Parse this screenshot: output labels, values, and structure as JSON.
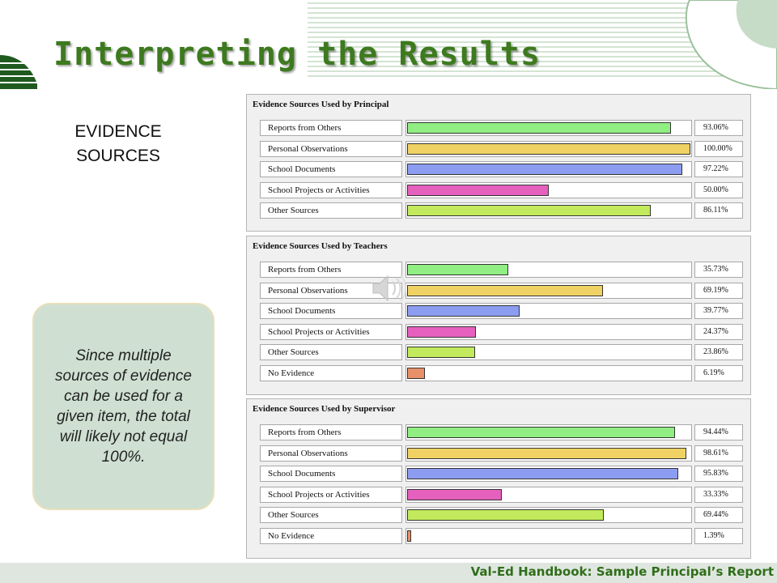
{
  "slide": {
    "title": "Interpreting the Results",
    "section_label": "EVIDENCE SOURCES",
    "callout": "Since multiple sources of evidence can be used for a given item, the total will likely not equal 100%.",
    "footer": "Val-Ed Handbook: Sample Principal’s Report"
  },
  "colors": {
    "Reports from Others": "#90ee82",
    "Personal Observations": "#f0d264",
    "School Documents": "#8c9cf0",
    "School Projects or Activities": "#e660be",
    "Other Sources": "#c2ea5c",
    "No Evidence": "#e8906a",
    "accent_green": "#3d7a1e"
  },
  "icons": {
    "audio": "speaker-icon"
  },
  "chart_data": [
    {
      "type": "bar",
      "orientation": "horizontal",
      "title": "Evidence Sources Used by Principal",
      "categories": [
        "Reports from Others",
        "Personal Observations",
        "School Documents",
        "School Projects or Activities",
        "Other Sources"
      ],
      "values": [
        93.06,
        100.0,
        97.22,
        50.0,
        86.11
      ],
      "value_labels": [
        "93.06%",
        "100.00%",
        "97.22%",
        "50.00%",
        "86.11%"
      ],
      "xlim": [
        0,
        100
      ]
    },
    {
      "type": "bar",
      "orientation": "horizontal",
      "title": "Evidence Sources Used by Teachers",
      "categories": [
        "Reports from Others",
        "Personal Observations",
        "School Documents",
        "School Projects or Activities",
        "Other Sources",
        "No Evidence"
      ],
      "values": [
        35.73,
        69.19,
        39.77,
        24.37,
        23.86,
        6.19
      ],
      "value_labels": [
        "35.73%",
        "69.19%",
        "39.77%",
        "24.37%",
        "23.86%",
        "6.19%"
      ],
      "xlim": [
        0,
        100
      ]
    },
    {
      "type": "bar",
      "orientation": "horizontal",
      "title": "Evidence Sources Used by Supervisor",
      "categories": [
        "Reports from Others",
        "Personal Observations",
        "School Documents",
        "School Projects or Activities",
        "Other Sources",
        "No Evidence"
      ],
      "values": [
        94.44,
        98.61,
        95.83,
        33.33,
        69.44,
        1.39
      ],
      "value_labels": [
        "94.44%",
        "98.61%",
        "95.83%",
        "33.33%",
        "69.44%",
        "1.39%"
      ],
      "xlim": [
        0,
        100
      ]
    }
  ]
}
